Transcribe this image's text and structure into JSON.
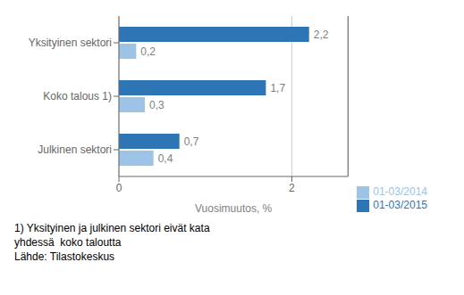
{
  "chart_data": {
    "type": "bar",
    "orientation": "horizontal",
    "categories": [
      "Julkinen sektori",
      "Koko talous 1)",
      "Yksityinen sektori"
    ],
    "series": [
      {
        "name": "01-03/2015",
        "color": "#2e75b6",
        "values": [
          0.7,
          1.7,
          2.2
        ],
        "value_labels": [
          "0,7",
          "1,7",
          "2,2"
        ]
      },
      {
        "name": "01-03/2014",
        "color": "#9dc3e6",
        "values": [
          0.4,
          0.3,
          0.2
        ],
        "value_labels": [
          "0,4",
          "0,3",
          "0,2"
        ]
      }
    ],
    "xlabel": "Vuosimuutos, %",
    "xlim": [
      0,
      2.65
    ],
    "xticks": [
      0,
      2
    ],
    "grid": true,
    "legend": "lower right",
    "data_labels": true,
    "annotations": [
      "1) Yksityinen ja julkinen sektori eivät kata",
      "yhdessä  koko taloutta",
      "Lähde: Tilastokeskus"
    ]
  }
}
